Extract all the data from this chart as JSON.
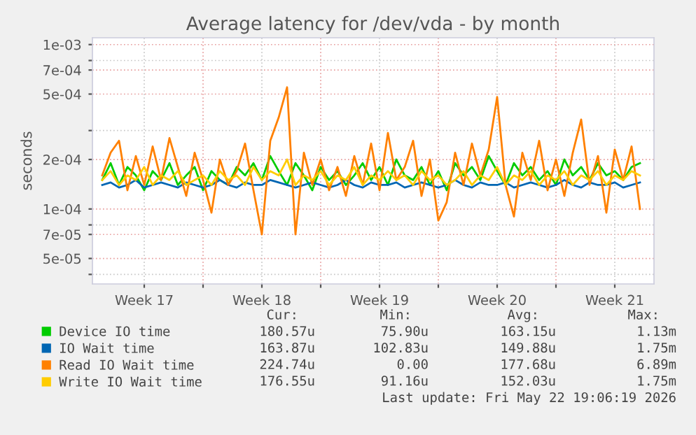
{
  "chart_data": {
    "type": "line",
    "title": "Average latency for /dev/vda - by month",
    "ylabel": "seconds",
    "log": "y",
    "grid": true,
    "legend": "bottom",
    "marker": "none",
    "line_style": "solid",
    "xlim": [
      "2026-04-20T10:00",
      "2026-05-23T20:00"
    ],
    "xticks": [
      {
        "value": "2026-04-23T12:00",
        "label": "Week 17"
      },
      {
        "value": "2026-04-27",
        "label": null
      },
      {
        "value": "2026-04-30T12:00",
        "label": "Week 18"
      },
      {
        "value": "2026-05-04",
        "label": null
      },
      {
        "value": "2026-05-07T12:00",
        "label": "Week 19"
      },
      {
        "value": "2026-05-11",
        "label": null
      },
      {
        "value": "2026-05-14T12:00",
        "label": "Week 20"
      },
      {
        "value": "2026-05-18",
        "label": null
      },
      {
        "value": "2026-05-21T12:00",
        "label": "Week 21"
      }
    ],
    "ylim": [
      3.5e-05,
      0.0011
    ],
    "yticks": [
      {
        "value": 4e-05,
        "label": null
      },
      {
        "value": 5e-05,
        "label": "5e-05"
      },
      {
        "value": 7e-05,
        "label": "7e-05"
      },
      {
        "value": 8e-05,
        "label": null
      },
      {
        "value": 0.0001,
        "label": "1e-04"
      },
      {
        "value": 0.0002,
        "label": "2e-04"
      },
      {
        "value": 0.0003,
        "label": null
      },
      {
        "value": 0.0005,
        "label": "5e-04"
      },
      {
        "value": 0.0007,
        "label": "7e-04"
      },
      {
        "value": 0.0008,
        "label": null
      },
      {
        "value": 0.001,
        "label": "1e-03"
      }
    ],
    "x": [
      "2026-04-21T00:00",
      "2026-04-21T12:00",
      "2026-04-22T00:00",
      "2026-04-22T12:00",
      "2026-04-23T00:00",
      "2026-04-23T12:00",
      "2026-04-24T00:00",
      "2026-04-24T12:00",
      "2026-04-25T00:00",
      "2026-04-25T12:00",
      "2026-04-26T00:00",
      "2026-04-26T12:00",
      "2026-04-27T00:00",
      "2026-04-27T12:00",
      "2026-04-28T00:00",
      "2026-04-28T12:00",
      "2026-04-29T00:00",
      "2026-04-29T12:00",
      "2026-04-30T00:00",
      "2026-04-30T12:00",
      "2026-05-01T00:00",
      "2026-05-01T12:00",
      "2026-05-02T00:00",
      "2026-05-02T12:00",
      "2026-05-03T00:00",
      "2026-05-03T12:00",
      "2026-05-04T00:00",
      "2026-05-04T12:00",
      "2026-05-05T00:00",
      "2026-05-05T12:00",
      "2026-05-06T00:00",
      "2026-05-06T12:00",
      "2026-05-07T00:00",
      "2026-05-07T12:00",
      "2026-05-08T00:00",
      "2026-05-08T12:00",
      "2026-05-09T00:00",
      "2026-05-09T12:00",
      "2026-05-10T00:00",
      "2026-05-10T12:00",
      "2026-05-11T00:00",
      "2026-05-11T12:00",
      "2026-05-12T00:00",
      "2026-05-12T12:00",
      "2026-05-13T00:00",
      "2026-05-13T12:00",
      "2026-05-14T00:00",
      "2026-05-14T12:00",
      "2026-05-15T00:00",
      "2026-05-15T12:00",
      "2026-05-16T00:00",
      "2026-05-16T12:00",
      "2026-05-17T00:00",
      "2026-05-17T12:00",
      "2026-05-18T00:00",
      "2026-05-18T12:00",
      "2026-05-19T00:00",
      "2026-05-19T12:00",
      "2026-05-20T00:00",
      "2026-05-20T12:00",
      "2026-05-21T00:00",
      "2026-05-21T12:00",
      "2026-05-22T00:00",
      "2026-05-22T12:00",
      "2026-05-23T00:00"
    ],
    "series": [
      {
        "name": "Device IO time",
        "color": "#00cc00",
        "values": [
          0.00015,
          0.00019,
          0.00014,
          0.00018,
          0.00016,
          0.00013,
          0.00017,
          0.00015,
          0.00019,
          0.00014,
          0.00016,
          0.00018,
          0.00013,
          0.00017,
          0.00015,
          0.00014,
          0.00018,
          0.00016,
          0.00019,
          0.00015,
          0.00021,
          0.00017,
          0.00014,
          0.00019,
          0.00016,
          0.00013,
          0.00018,
          0.00015,
          0.00017,
          0.00014,
          0.00016,
          0.00019,
          0.00015,
          0.00018,
          0.00014,
          0.0002,
          0.00016,
          0.00015,
          0.00018,
          0.00014,
          0.00017,
          0.00013,
          0.00019,
          0.00016,
          0.00018,
          0.00015,
          0.00021,
          0.00017,
          0.00014,
          0.00019,
          0.00016,
          0.00018,
          0.00015,
          0.00017,
          0.00014,
          0.0002,
          0.00016,
          0.00018,
          0.00015,
          0.00019,
          0.00016,
          0.00017,
          0.00015,
          0.00018,
          0.00019
        ]
      },
      {
        "name": "IO Wait time",
        "color": "#0066b3",
        "values": [
          0.00014,
          0.000145,
          0.000135,
          0.00014,
          0.00015,
          0.000135,
          0.00014,
          0.000145,
          0.00014,
          0.000135,
          0.000145,
          0.00014,
          0.000135,
          0.00014,
          0.00015,
          0.00014,
          0.000135,
          0.000145,
          0.00014,
          0.00014,
          0.00015,
          0.000145,
          0.00014,
          0.000135,
          0.00014,
          0.000145,
          0.00014,
          0.000135,
          0.00014,
          0.00015,
          0.00014,
          0.000135,
          0.000145,
          0.00014,
          0.00014,
          0.000145,
          0.000135,
          0.00014,
          0.000145,
          0.00014,
          0.000135,
          0.00014,
          0.00015,
          0.00014,
          0.000135,
          0.000145,
          0.00014,
          0.00014,
          0.000145,
          0.000135,
          0.00014,
          0.000145,
          0.00014,
          0.000135,
          0.00014,
          0.00015,
          0.00014,
          0.000135,
          0.000145,
          0.00014,
          0.00014,
          0.000145,
          0.000135,
          0.00014,
          0.000145
        ]
      },
      {
        "name": "Read IO Wait time",
        "color": "#ff8000",
        "values": [
          0.00016,
          0.00022,
          0.00026,
          0.00013,
          0.00021,
          0.00014,
          0.00024,
          0.00015,
          0.00027,
          0.00018,
          0.00012,
          0.00022,
          0.00015,
          9.5e-05,
          0.0002,
          0.00014,
          0.00017,
          0.00025,
          0.00013,
          7e-05,
          0.00026,
          0.00036,
          0.00055,
          7e-05,
          0.00022,
          0.00014,
          0.0002,
          0.00013,
          0.00018,
          0.00012,
          0.00021,
          0.00014,
          0.00025,
          0.00013,
          0.00029,
          0.00015,
          0.00018,
          0.00026,
          0.00012,
          0.0002,
          8.5e-05,
          0.00011,
          0.00022,
          0.00014,
          0.00025,
          0.00016,
          0.00023,
          0.00048,
          0.00014,
          9e-05,
          0.00022,
          0.00015,
          0.00026,
          0.00013,
          0.0002,
          0.00012,
          0.00022,
          0.00035,
          0.00014,
          0.00021,
          9.5e-05,
          0.00023,
          0.00015,
          0.00024,
          0.0001
        ]
      },
      {
        "name": "Write IO Wait time",
        "color": "#ffcc00",
        "values": [
          0.00015,
          0.00017,
          0.00014,
          0.00016,
          0.00015,
          0.00018,
          0.00014,
          0.00016,
          0.00015,
          0.00017,
          0.00014,
          0.00015,
          0.00016,
          0.00014,
          0.00017,
          0.00015,
          0.00016,
          0.00014,
          0.00018,
          0.00015,
          0.00017,
          0.00016,
          0.0002,
          0.00014,
          0.00016,
          0.00015,
          0.00017,
          0.00014,
          0.00016,
          0.00015,
          0.00018,
          0.00014,
          0.00016,
          0.00015,
          0.00017,
          0.00015,
          0.00016,
          0.00014,
          0.00017,
          0.00015,
          0.00016,
          0.00014,
          0.00015,
          0.00017,
          0.00014,
          0.00016,
          0.00015,
          0.00018,
          0.00014,
          0.00016,
          0.00015,
          0.00017,
          0.00014,
          0.00016,
          0.00015,
          0.00017,
          0.00014,
          0.00016,
          0.00015,
          0.00017,
          0.00014,
          0.00016,
          0.00015,
          0.00017,
          0.00016
        ]
      }
    ],
    "annotations": [
      "Cur:",
      "Min:",
      "Avg:",
      "Max:",
      "180.57u",
      "75.90u",
      "163.15u",
      "1.13m",
      "163.87u",
      "102.83u",
      "149.88u",
      "1.75m",
      "224.74u",
      "0.00",
      "177.68u",
      "6.89m",
      "176.55u",
      "91.16u",
      "152.03u",
      "1.75m",
      "Last update: Fri May 22 19:06:19 2026"
    ]
  }
}
